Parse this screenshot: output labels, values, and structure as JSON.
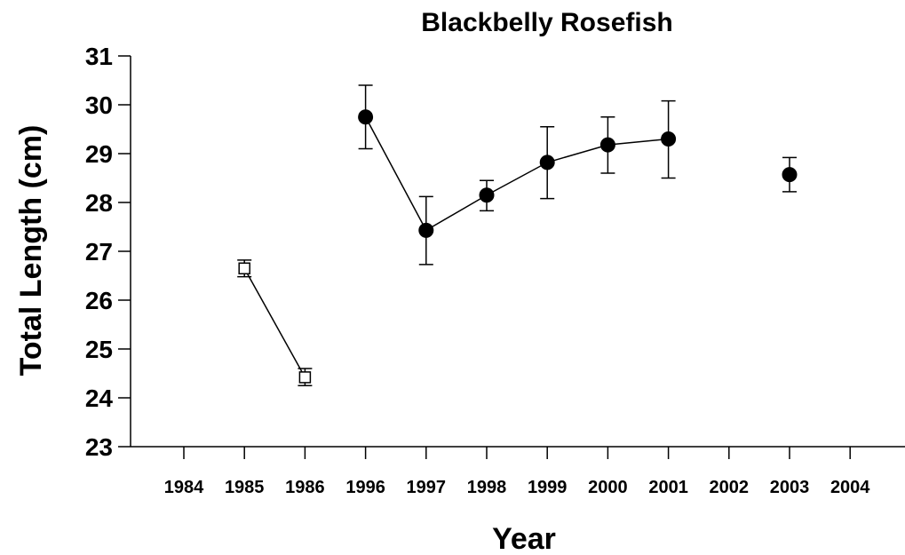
{
  "chart_data": {
    "type": "scatter",
    "title": "Blackbelly Rosefish",
    "xlabel": "Year",
    "ylabel": "Total Length (cm)",
    "categories": [
      "1984",
      "1985",
      "1986",
      "1996",
      "1997",
      "1998",
      "1999",
      "2000",
      "2001",
      "2002",
      "2003",
      "2004"
    ],
    "ylim": [
      23,
      31
    ],
    "yticks": [
      23,
      24,
      25,
      26,
      27,
      28,
      29,
      30,
      31
    ],
    "grid": false,
    "series": [
      {
        "marker": "open-square",
        "connected": true,
        "points": [
          {
            "x": "1985",
            "y": 26.65,
            "err_low": 26.48,
            "err_high": 26.82
          },
          {
            "x": "1986",
            "y": 24.42,
            "err_low": 24.25,
            "err_high": 24.6
          }
        ]
      },
      {
        "marker": "filled-circle",
        "connected": true,
        "points": [
          {
            "x": "1996",
            "y": 29.75,
            "err_low": 29.1,
            "err_high": 30.4
          },
          {
            "x": "1997",
            "y": 27.43,
            "err_low": 26.73,
            "err_high": 28.12
          },
          {
            "x": "1998",
            "y": 28.15,
            "err_low": 27.83,
            "err_high": 28.45
          },
          {
            "x": "1999",
            "y": 28.82,
            "err_low": 28.08,
            "err_high": 29.55
          },
          {
            "x": "2000",
            "y": 29.18,
            "err_low": 28.6,
            "err_high": 29.75
          },
          {
            "x": "2001",
            "y": 29.3,
            "err_low": 28.5,
            "err_high": 30.08
          }
        ]
      },
      {
        "marker": "filled-circle",
        "connected": false,
        "points": [
          {
            "x": "2003",
            "y": 28.57,
            "err_low": 28.22,
            "err_high": 28.92
          }
        ]
      }
    ],
    "colors": {
      "marks": "#000000",
      "background": "#ffffff"
    }
  }
}
